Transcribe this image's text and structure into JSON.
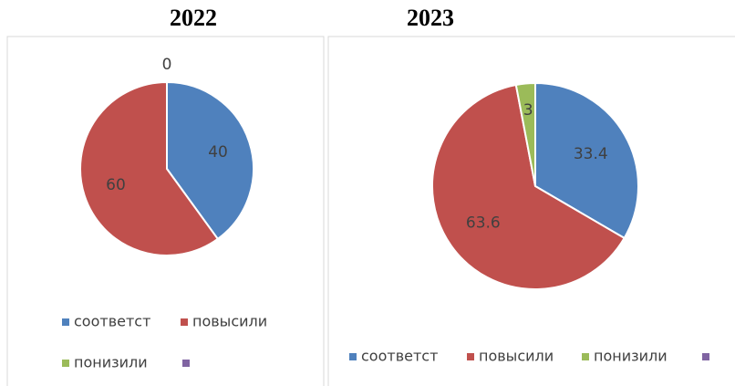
{
  "chart_data": [
    {
      "type": "pie",
      "title": "2022",
      "categories": [
        "соответст",
        "повысили",
        "понизили",
        null
      ],
      "values": [
        40,
        60,
        0,
        null
      ],
      "colors": [
        "#4f81bd",
        "#c0504d",
        "#9bbb59",
        "#8064a2"
      ]
    },
    {
      "type": "pie",
      "title": "2023",
      "categories": [
        "соответст",
        "повысили",
        "понизили",
        null
      ],
      "values": [
        33.4,
        63.6,
        3,
        null
      ],
      "colors": [
        "#4f81bd",
        "#c0504d",
        "#9bbb59",
        "#8064a2"
      ]
    }
  ]
}
